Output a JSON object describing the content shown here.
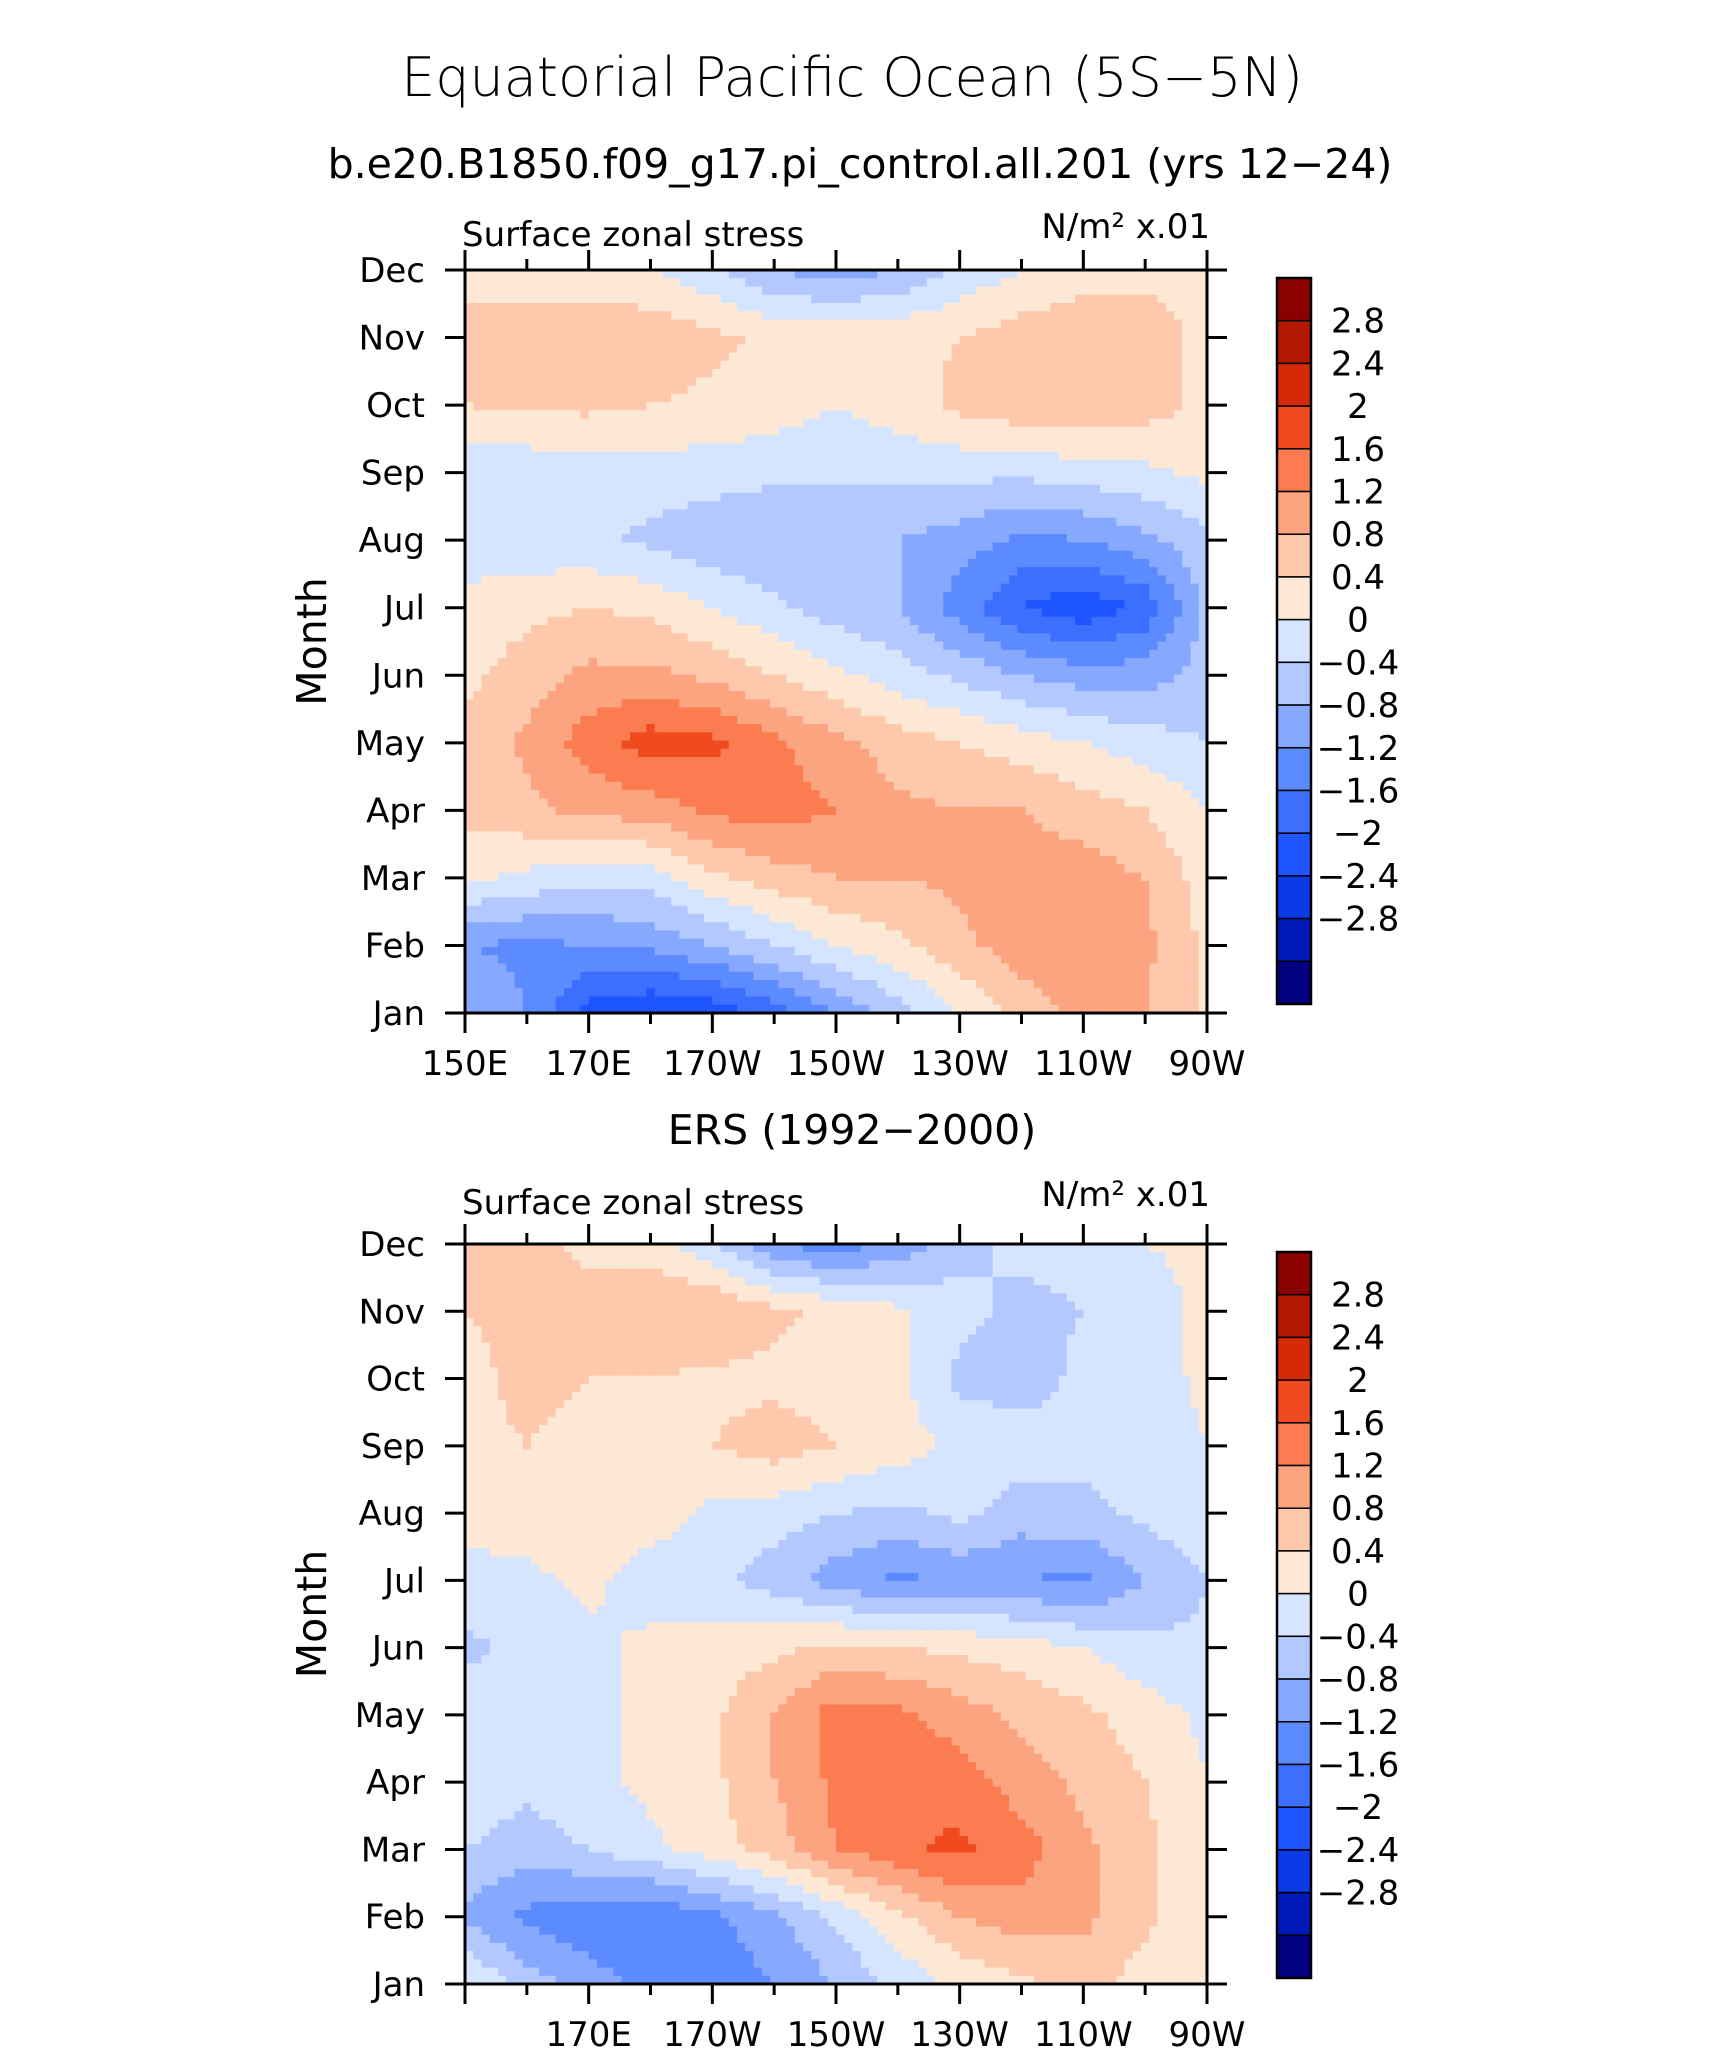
{
  "title": "Equatorial Pacific Ocean (5S−5N)",
  "colors": {
    "palette": [
      "#000080",
      "#0019b8",
      "#0a3be6",
      "#1f55ff",
      "#3d6fff",
      "#5c8bff",
      "#86a9ff",
      "#b2c8ff",
      "#d6e5ff",
      "#fde8d6",
      "#fdc8ab",
      "#fca47f",
      "#fb7c51",
      "#f04b1e",
      "#d42a08",
      "#b21800",
      "#8b0000"
    ],
    "frame": "#000000"
  },
  "colorbar_labels": [
    "2.8",
    "2.4",
    "2",
    "1.6",
    "1.2",
    "0.8",
    "0.4",
    "0",
    "−0.4",
    "−0.8",
    "−1.2",
    "−1.6",
    "−2",
    "−2.4",
    "−2.8"
  ],
  "chart_data": [
    {
      "type": "heatmap",
      "subtitle": "b.e20.B1850.f09_g17.pi_control.all.201 (yrs 12−24)",
      "left_label": "Surface zonal stress",
      "right_label": "N/m² x.01",
      "xlabel": "",
      "ylabel": "Month",
      "x_tick_labels": [
        "150E",
        "170E",
        "170W",
        "150W",
        "130W",
        "110W",
        "90W"
      ],
      "x_tick_values": [
        150,
        170,
        190,
        210,
        230,
        250,
        270
      ],
      "y_tick_labels": [
        "Jan",
        "Feb",
        "Mar",
        "Apr",
        "May",
        "Jun",
        "Jul",
        "Aug",
        "Sep",
        "Oct",
        "Nov",
        "Dec"
      ],
      "xlim": [
        150,
        270
      ],
      "ylim": [
        1,
        12
      ],
      "levels": [
        -2.8,
        -2.4,
        -2,
        -1.6,
        -1.2,
        -0.8,
        -0.4,
        0,
        0.4,
        0.8,
        1.2,
        1.6,
        2,
        2.4,
        2.8
      ],
      "x": [
        150,
        160,
        170,
        180,
        190,
        200,
        210,
        220,
        230,
        240,
        250,
        260,
        270
      ],
      "z": [
        [
          -0.8,
          -1.2,
          -2.2,
          -2.4,
          -2.3,
          -1.8,
          -1.2,
          -0.6,
          0.0,
          0.6,
          0.9,
          0.8,
          0.3
        ],
        [
          -1.2,
          -1.3,
          -1.2,
          -1.1,
          -0.8,
          -0.4,
          0.0,
          0.3,
          0.7,
          1.0,
          1.0,
          0.9,
          0.3
        ],
        [
          0.1,
          -0.1,
          -0.3,
          -0.2,
          0.3,
          0.6,
          0.8,
          0.8,
          0.9,
          1.0,
          1.0,
          0.8,
          0.2
        ],
        [
          0.5,
          0.7,
          0.9,
          1.0,
          1.3,
          1.4,
          1.2,
          0.9,
          0.8,
          0.8,
          0.6,
          0.4,
          0.0
        ],
        [
          0.5,
          0.9,
          1.4,
          1.8,
          1.7,
          1.3,
          0.9,
          0.6,
          0.4,
          0.2,
          0.0,
          -0.2,
          -0.4
        ],
        [
          0.3,
          0.6,
          0.9,
          0.9,
          0.7,
          0.4,
          0.1,
          -0.2,
          -0.5,
          -0.8,
          -1.0,
          -1.0,
          -0.6
        ],
        [
          0.1,
          0.3,
          0.4,
          0.3,
          0.0,
          -0.3,
          -0.6,
          -0.8,
          -1.4,
          -2.0,
          -2.3,
          -1.9,
          -0.7
        ],
        [
          -0.2,
          -0.3,
          -0.3,
          -0.5,
          -0.7,
          -0.8,
          -0.8,
          -0.8,
          -1.0,
          -1.3,
          -1.2,
          -0.9,
          -0.5
        ],
        [
          -0.3,
          -0.3,
          -0.2,
          -0.2,
          -0.2,
          -0.3,
          -0.3,
          -0.3,
          -0.3,
          -0.3,
          -0.2,
          -0.1,
          0.1
        ],
        [
          0.4,
          0.5,
          0.5,
          0.4,
          0.3,
          0.2,
          0.0,
          0.2,
          0.5,
          0.7,
          0.7,
          0.6,
          0.3
        ],
        [
          0.7,
          0.8,
          0.8,
          0.7,
          0.5,
          0.3,
          0.3,
          0.3,
          0.4,
          0.6,
          0.7,
          0.6,
          0.3
        ],
        [
          0.1,
          0.1,
          0.1,
          0.0,
          -0.3,
          -0.8,
          -1.0,
          -0.8,
          -0.3,
          0.0,
          0.2,
          0.3,
          0.3
        ]
      ]
    },
    {
      "type": "heatmap",
      "subtitle": "ERS (1992−2000)",
      "left_label": "Surface zonal stress",
      "right_label": "N/m² x.01",
      "xlabel": "",
      "ylabel": "Month",
      "x_tick_labels": [
        "170E",
        "170W",
        "150W",
        "130W",
        "110W",
        "90W"
      ],
      "x_tick_values": [
        170,
        190,
        210,
        230,
        250,
        270
      ],
      "y_tick_labels": [
        "Jan",
        "Feb",
        "Mar",
        "Apr",
        "May",
        "Jun",
        "Jul",
        "Aug",
        "Sep",
        "Oct",
        "Nov",
        "Dec"
      ],
      "xlim": [
        150,
        270
      ],
      "ylim": [
        1,
        12
      ],
      "levels": [
        -2.8,
        -2.4,
        -2,
        -1.6,
        -1.2,
        -0.8,
        -0.4,
        0,
        0.4,
        0.8,
        1.2,
        1.6,
        2,
        2.4,
        2.8
      ],
      "x": [
        150,
        160,
        170,
        180,
        190,
        200,
        210,
        220,
        230,
        240,
        250,
        260,
        270
      ],
      "z": [
        [
          0.1,
          -0.6,
          -1.0,
          -1.3,
          -1.5,
          -1.2,
          -0.8,
          -0.3,
          0.1,
          0.3,
          0.6,
          0.2,
          0.0
        ],
        [
          -0.9,
          -1.3,
          -1.5,
          -1.6,
          -1.3,
          -0.9,
          -0.3,
          0.3,
          0.8,
          1.0,
          0.9,
          0.5,
          0.1
        ],
        [
          -0.4,
          -0.6,
          -0.4,
          -0.1,
          0.2,
          0.6,
          1.2,
          1.5,
          1.7,
          1.4,
          0.9,
          0.5,
          0.1
        ],
        [
          -0.1,
          -0.3,
          -0.1,
          0.1,
          0.3,
          0.8,
          1.3,
          1.6,
          1.4,
          1.0,
          0.7,
          0.4,
          0.0
        ],
        [
          -0.1,
          -0.2,
          -0.1,
          0.1,
          0.3,
          0.8,
          1.4,
          1.3,
          1.0,
          0.7,
          0.5,
          0.2,
          -0.1
        ],
        [
          -0.5,
          -0.3,
          -0.1,
          0.1,
          0.2,
          0.3,
          0.5,
          0.4,
          0.3,
          0.2,
          0.0,
          -0.3,
          -0.3
        ],
        [
          -0.1,
          -0.1,
          0.1,
          -0.2,
          -0.3,
          -0.6,
          -1.0,
          -1.3,
          -1.1,
          -1.2,
          -1.3,
          -0.8,
          -0.4
        ],
        [
          0.1,
          0.2,
          0.3,
          0.2,
          -0.1,
          -0.2,
          -0.4,
          -0.5,
          -0.3,
          -0.6,
          -0.5,
          -0.3,
          -0.1
        ],
        [
          0.3,
          0.4,
          0.3,
          0.3,
          0.4,
          0.6,
          0.4,
          0.2,
          -0.1,
          -0.2,
          -0.3,
          -0.2,
          0.0
        ],
        [
          0.3,
          0.5,
          0.4,
          0.4,
          0.3,
          0.3,
          0.2,
          0.1,
          -0.5,
          -0.6,
          -0.3,
          -0.2,
          0.1
        ],
        [
          0.4,
          0.5,
          0.6,
          0.8,
          0.8,
          0.5,
          0.3,
          0.1,
          -0.3,
          -0.5,
          -0.4,
          -0.2,
          0.1
        ],
        [
          0.4,
          0.5,
          0.3,
          0.2,
          -0.3,
          -1.2,
          -1.4,
          -1.1,
          -0.5,
          -0.3,
          -0.3,
          0.0,
          0.1
        ]
      ]
    }
  ]
}
